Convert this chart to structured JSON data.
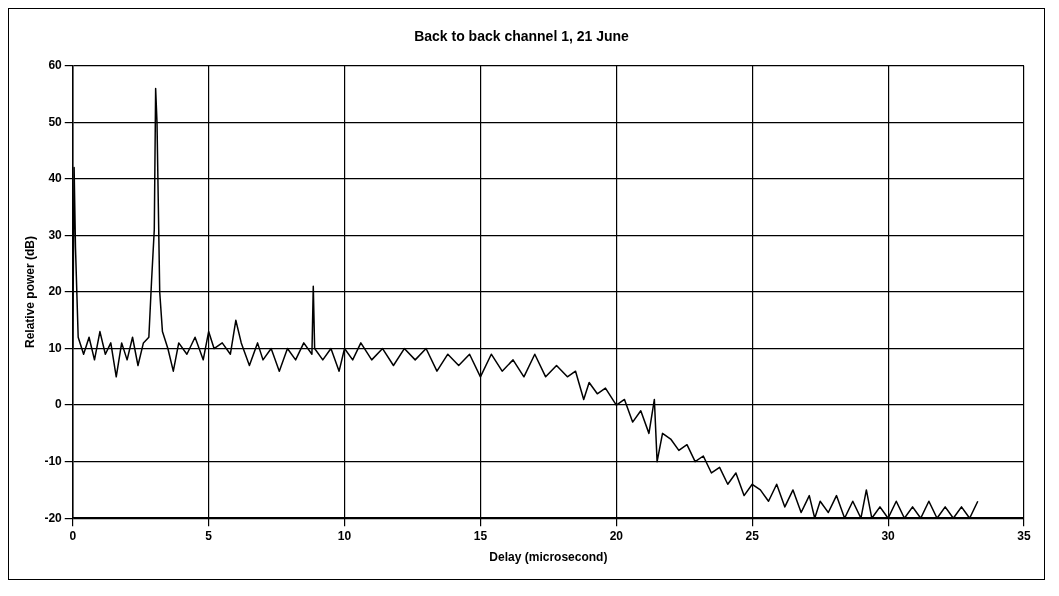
{
  "chart_data": {
    "type": "line",
    "title": "Back to back channel 1, 21 June",
    "xlabel": "Delay (microsecond)",
    "ylabel": "Relative power (dB)",
    "xlim": [
      0,
      35
    ],
    "xticks": [
      0,
      5,
      10,
      15,
      20,
      25,
      30,
      35
    ],
    "ylim": [
      -20,
      60
    ],
    "yticks": [
      -20,
      -10,
      0,
      10,
      20,
      30,
      40,
      50,
      60
    ],
    "grid": true,
    "legend": false,
    "marker": "none",
    "line_style": "solid",
    "series": [
      {
        "color": "#000000",
        "x": [
          0,
          0.05,
          0.1,
          0.2,
          0.4,
          0.6,
          0.8,
          1.0,
          1.2,
          1.4,
          1.6,
          1.8,
          2.0,
          2.2,
          2.4,
          2.6,
          2.8,
          2.9,
          3.0,
          3.05,
          3.1,
          3.2,
          3.3,
          3.5,
          3.7,
          3.9,
          4.2,
          4.5,
          4.8,
          5.0,
          5.2,
          5.5,
          5.8,
          6.0,
          6.2,
          6.5,
          6.8,
          7.0,
          7.3,
          7.6,
          7.9,
          8.2,
          8.5,
          8.8,
          8.85,
          8.9,
          9.2,
          9.5,
          9.8,
          10.0,
          10.3,
          10.6,
          11,
          11.4,
          11.8,
          12.2,
          12.6,
          13,
          13.4,
          13.8,
          14.2,
          14.6,
          15,
          15.4,
          15.8,
          16.2,
          16.6,
          17,
          17.4,
          17.8,
          18.2,
          18.5,
          18.8,
          19,
          19.3,
          19.6,
          20,
          20.3,
          20.6,
          20.9,
          21.2,
          21.4,
          21.5,
          21.7,
          22,
          22.3,
          22.6,
          22.9,
          23.2,
          23.5,
          23.8,
          24.1,
          24.4,
          24.7,
          25,
          25.3,
          25.6,
          25.9,
          26.2,
          26.5,
          26.8,
          27.1,
          27.3,
          27.5,
          27.8,
          28.1,
          28.4,
          28.7,
          29,
          29.2,
          29.4,
          29.7,
          30,
          30.3,
          30.6,
          30.9,
          31.2,
          31.5,
          31.8,
          32.1,
          32.4,
          32.7,
          33,
          33.3
        ],
        "values": [
          10,
          42,
          28,
          12,
          9,
          12,
          8,
          13,
          9,
          11,
          5,
          11,
          8,
          12,
          7,
          11,
          12,
          22,
          31,
          56,
          50,
          20,
          13,
          10,
          6,
          11,
          9,
          12,
          8,
          13,
          10,
          11,
          9,
          15,
          11,
          7,
          11,
          8,
          10,
          6,
          10,
          8,
          11,
          9,
          21,
          10,
          8,
          10,
          6,
          10,
          8,
          11,
          8,
          10,
          7,
          10,
          8,
          10,
          6,
          9,
          7,
          9,
          5,
          9,
          6,
          8,
          5,
          9,
          5,
          7,
          5,
          6,
          1,
          4,
          2,
          3,
          0,
          1,
          -3,
          -1,
          -5,
          1,
          -10,
          -5,
          -6,
          -8,
          -7,
          -10,
          -9,
          -12,
          -11,
          -14,
          -12,
          -16,
          -14,
          -15,
          -17,
          -14,
          -18,
          -15,
          -19,
          -16,
          -20,
          -17,
          -19,
          -16,
          -20,
          -17,
          -20,
          -15,
          -20,
          -18,
          -20,
          -17,
          -20,
          -18,
          -20,
          -17,
          -20,
          -18,
          -20,
          -18,
          -20,
          -17
        ]
      }
    ]
  }
}
